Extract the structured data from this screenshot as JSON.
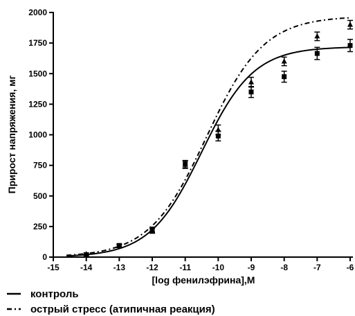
{
  "chart_data": {
    "type": "scatter",
    "title": "",
    "xlabel": "[log фенилэфрина],M",
    "ylabel": "Прирост напряжения, мг",
    "xlim": [
      -15,
      -6
    ],
    "ylim": [
      0,
      2000
    ],
    "xticks": [
      "-15",
      "-14",
      "-13",
      "-12",
      "-11",
      "-10",
      "-9",
      "-8",
      "-7",
      "-6"
    ],
    "yticks": [
      "0",
      "250",
      "500",
      "750",
      "1000",
      "1250",
      "1500",
      "1750",
      "2000"
    ],
    "grid": false,
    "legend_position": "bottom-left",
    "series": [
      {
        "name": "контроль",
        "marker": "square",
        "line_style": "solid",
        "color": "#000000",
        "points": [
          {
            "x": -14,
            "y": 15,
            "err": 10
          },
          {
            "x": -13,
            "y": 95,
            "err": 12
          },
          {
            "x": -12,
            "y": 225,
            "err": 20
          },
          {
            "x": -11,
            "y": 760,
            "err": 30
          },
          {
            "x": -10,
            "y": 990,
            "err": 40
          },
          {
            "x": -9,
            "y": 1350,
            "err": 45
          },
          {
            "x": -8,
            "y": 1475,
            "err": 45
          },
          {
            "x": -7,
            "y": 1665,
            "err": 50
          },
          {
            "x": -6,
            "y": 1730,
            "err": 50
          }
        ],
        "fit": {
          "bottom": 0,
          "top": 1720,
          "logEC50": -10.5,
          "hill": 0.55
        }
      },
      {
        "name": "острый стресс (атипичная реакция)",
        "marker": "triangle",
        "line_style": "dash-dot",
        "color": "#000000",
        "points": [
          {
            "x": -14,
            "y": 25,
            "err": 10
          },
          {
            "x": -13,
            "y": 90,
            "err": 12
          },
          {
            "x": -12,
            "y": 215,
            "err": 20
          },
          {
            "x": -11,
            "y": 755,
            "err": 30
          },
          {
            "x": -10,
            "y": 1040,
            "err": 40
          },
          {
            "x": -9,
            "y": 1430,
            "err": 40
          },
          {
            "x": -8,
            "y": 1600,
            "err": 35
          },
          {
            "x": -7,
            "y": 1805,
            "err": 35
          },
          {
            "x": -6,
            "y": 1900,
            "err": 35
          }
        ],
        "fit": {
          "bottom": 0,
          "top": 1970,
          "logEC50": -10.35,
          "hill": 0.5
        }
      }
    ]
  }
}
